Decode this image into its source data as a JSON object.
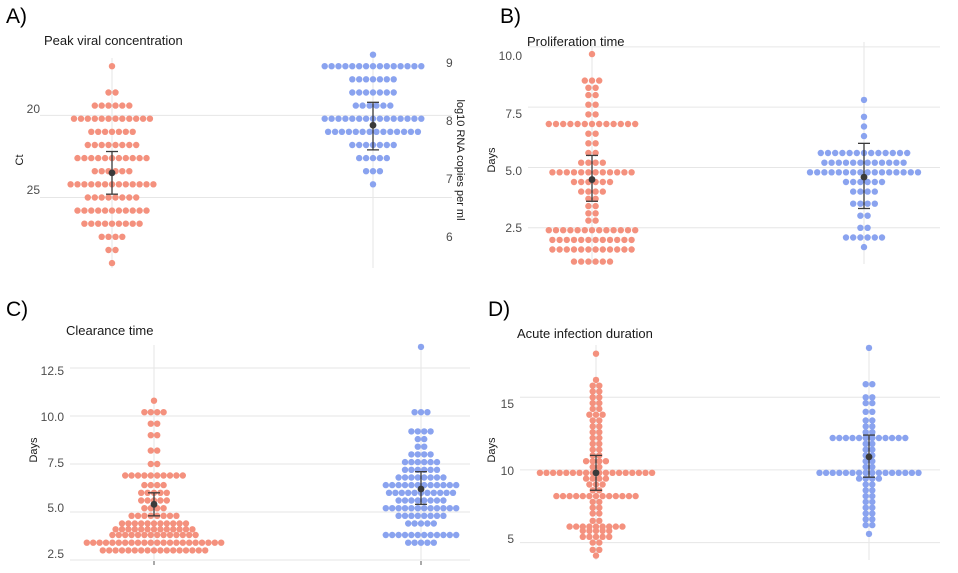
{
  "colors": {
    "group_a": "#f4917e",
    "group_b": "#8aa3ef",
    "error_bar": "#3a3a3a"
  },
  "chart_data": [
    {
      "panel": "A)",
      "type": "scatter",
      "title": "Peak viral concentration",
      "ylabel": "Ct",
      "y2label": "log10 RNA copies per ml",
      "ylim": [
        29.3,
        16.5
      ],
      "y_reversed": true,
      "yticks": [
        20,
        25
      ],
      "y2ticks": [
        6,
        7,
        8,
        9
      ],
      "y2_map": {
        "slope": -0.2768,
        "intercept": 13.54
      },
      "groups": [
        {
          "mean": 23.5,
          "err": [
            22.2,
            24.8
          ]
        },
        {
          "mean": 20.6,
          "err": [
            19.2,
            22.1
          ]
        }
      ],
      "series": [
        {
          "values": [
            17.0,
            18.6,
            18.6,
            19.4,
            19.4,
            19.4,
            19.4,
            19.4,
            19.4,
            20.2,
            20.2,
            20.2,
            20.2,
            20.2,
            20.2,
            20.2,
            20.2,
            20.2,
            20.2,
            20.2,
            20.2,
            21.0,
            21.0,
            21.0,
            21.0,
            21.0,
            21.0,
            21.0,
            21.8,
            21.8,
            21.8,
            21.8,
            21.8,
            21.8,
            21.8,
            21.8,
            22.6,
            22.6,
            22.6,
            22.6,
            22.6,
            22.6,
            22.6,
            22.6,
            22.6,
            22.6,
            22.6,
            23.4,
            23.4,
            23.4,
            23.4,
            23.4,
            23.4,
            24.2,
            24.2,
            24.2,
            24.2,
            24.2,
            24.2,
            24.2,
            24.2,
            24.2,
            24.2,
            24.2,
            24.2,
            24.2,
            25.0,
            25.0,
            25.0,
            25.0,
            25.0,
            25.0,
            25.0,
            25.0,
            25.8,
            25.8,
            25.8,
            25.8,
            25.8,
            25.8,
            25.8,
            25.8,
            25.8,
            25.8,
            25.8,
            26.6,
            26.6,
            26.6,
            26.6,
            26.6,
            26.6,
            26.6,
            26.6,
            26.6,
            27.4,
            27.4,
            27.4,
            27.4,
            28.2,
            28.2,
            29.0
          ]
        },
        {
          "values": [
            16.3,
            17.0,
            17.0,
            17.0,
            17.0,
            17.0,
            17.0,
            17.0,
            17.0,
            17.0,
            17.0,
            17.0,
            17.0,
            17.0,
            17.0,
            17.0,
            17.8,
            17.8,
            17.8,
            17.8,
            17.8,
            17.8,
            17.8,
            18.6,
            18.6,
            18.6,
            18.6,
            18.6,
            18.6,
            18.6,
            19.4,
            19.4,
            19.4,
            19.4,
            19.4,
            19.4,
            20.2,
            20.2,
            20.2,
            20.2,
            20.2,
            20.2,
            20.2,
            20.2,
            20.2,
            20.2,
            20.2,
            20.2,
            20.2,
            20.2,
            20.2,
            21.0,
            21.0,
            21.0,
            21.0,
            21.0,
            21.0,
            21.0,
            21.0,
            21.0,
            21.0,
            21.0,
            21.0,
            21.0,
            21.0,
            21.8,
            21.8,
            21.8,
            21.8,
            21.8,
            21.8,
            21.8,
            22.6,
            22.6,
            22.6,
            22.6,
            22.6,
            23.4,
            23.4,
            23.4,
            24.2
          ]
        }
      ]
    },
    {
      "panel": "B)",
      "type": "scatter",
      "title": "Proliferation time",
      "ylabel": "Days",
      "ylim": [
        1.0,
        10.2
      ],
      "yticks": [
        "2.5",
        "5.0",
        "7.5",
        "10.0"
      ],
      "groups": [
        {
          "mean": 4.5,
          "err": [
            3.6,
            5.5
          ]
        },
        {
          "mean": 4.6,
          "err": [
            3.3,
            6.0
          ]
        }
      ],
      "series": [
        {
          "values": [
            1.1,
            1.1,
            1.1,
            1.1,
            1.1,
            1.1,
            1.6,
            1.6,
            1.6,
            1.6,
            1.6,
            1.6,
            1.6,
            1.6,
            1.6,
            1.6,
            1.6,
            1.6,
            2.0,
            2.0,
            2.0,
            2.0,
            2.0,
            2.0,
            2.0,
            2.0,
            2.0,
            2.0,
            2.0,
            2.0,
            2.4,
            2.4,
            2.4,
            2.4,
            2.4,
            2.4,
            2.4,
            2.4,
            2.4,
            2.4,
            2.4,
            2.4,
            2.4,
            2.8,
            2.8,
            3.1,
            3.1,
            3.4,
            3.4,
            3.7,
            3.7,
            4.0,
            4.0,
            4.0,
            4.0,
            4.4,
            4.4,
            4.4,
            4.4,
            4.4,
            4.4,
            4.8,
            4.8,
            4.8,
            4.8,
            4.8,
            4.8,
            4.8,
            4.8,
            4.8,
            4.8,
            4.8,
            4.8,
            5.2,
            5.2,
            5.2,
            5.2,
            5.6,
            5.6,
            6.0,
            6.0,
            6.4,
            6.4,
            6.8,
            6.8,
            6.8,
            6.8,
            6.8,
            6.8,
            6.8,
            6.8,
            6.8,
            6.8,
            6.8,
            6.8,
            6.8,
            7.2,
            7.2,
            7.6,
            7.6,
            8.0,
            8.0,
            8.3,
            8.3,
            8.6,
            8.6,
            8.6,
            9.7
          ]
        },
        {
          "values": [
            1.7,
            2.1,
            2.1,
            2.1,
            2.1,
            2.1,
            2.1,
            2.5,
            2.5,
            3.0,
            3.0,
            3.5,
            3.5,
            3.5,
            3.5,
            4.0,
            4.0,
            4.0,
            4.0,
            4.4,
            4.4,
            4.4,
            4.4,
            4.4,
            4.4,
            4.8,
            4.8,
            4.8,
            4.8,
            4.8,
            4.8,
            4.8,
            4.8,
            4.8,
            4.8,
            4.8,
            4.8,
            4.8,
            4.8,
            4.8,
            4.8,
            5.2,
            5.2,
            5.2,
            5.2,
            5.2,
            5.2,
            5.2,
            5.2,
            5.2,
            5.2,
            5.2,
            5.2,
            5.6,
            5.6,
            5.6,
            5.6,
            5.6,
            5.6,
            5.6,
            5.6,
            5.6,
            5.6,
            5.6,
            5.6,
            5.6,
            6.3,
            6.7,
            7.1,
            7.8
          ]
        }
      ]
    },
    {
      "panel": "C)",
      "type": "scatter",
      "title": "Clearance time",
      "ylabel": "Days",
      "ylim": [
        2.5,
        13.7
      ],
      "yticks": [
        "2.5",
        "5.0",
        "7.5",
        "10.0",
        "12.5"
      ],
      "groups": [
        {
          "mean": 5.4,
          "err": [
            4.8,
            6.0
          ]
        },
        {
          "mean": 6.2,
          "err": [
            5.4,
            7.1
          ]
        }
      ],
      "series": [
        {
          "values": [
            3.0,
            3.0,
            3.0,
            3.0,
            3.0,
            3.0,
            3.0,
            3.0,
            3.0,
            3.0,
            3.0,
            3.0,
            3.0,
            3.0,
            3.0,
            3.0,
            3.0,
            3.4,
            3.4,
            3.4,
            3.4,
            3.4,
            3.4,
            3.4,
            3.4,
            3.4,
            3.4,
            3.4,
            3.4,
            3.4,
            3.4,
            3.4,
            3.4,
            3.4,
            3.4,
            3.4,
            3.4,
            3.4,
            3.4,
            3.8,
            3.8,
            3.8,
            3.8,
            3.8,
            3.8,
            3.8,
            3.8,
            3.8,
            3.8,
            3.8,
            3.8,
            3.8,
            3.8,
            4.1,
            4.1,
            4.1,
            4.1,
            4.1,
            4.1,
            4.1,
            4.1,
            4.1,
            4.1,
            4.1,
            4.1,
            4.1,
            4.4,
            4.4,
            4.4,
            4.4,
            4.4,
            4.4,
            4.4,
            4.4,
            4.4,
            4.4,
            4.4,
            4.8,
            4.8,
            4.8,
            4.8,
            4.8,
            4.8,
            4.8,
            4.8,
            5.2,
            5.2,
            5.2,
            5.2,
            5.6,
            5.6,
            5.6,
            5.6,
            5.6,
            6.0,
            6.0,
            6.0,
            6.0,
            6.0,
            6.4,
            6.4,
            6.4,
            6.4,
            6.9,
            6.9,
            6.9,
            6.9,
            6.9,
            6.9,
            6.9,
            6.9,
            6.9,
            6.9,
            7.5,
            7.5,
            8.2,
            8.2,
            9.0,
            9.0,
            9.6,
            9.6,
            10.2,
            10.2,
            10.2,
            10.2,
            10.8
          ]
        },
        {
          "values": [
            3.4,
            3.4,
            3.4,
            3.4,
            3.4,
            3.8,
            3.8,
            3.8,
            3.8,
            3.8,
            3.8,
            3.8,
            3.8,
            3.8,
            3.8,
            3.8,
            3.8,
            4.4,
            4.4,
            4.4,
            4.4,
            4.4,
            4.8,
            4.8,
            4.8,
            4.8,
            4.8,
            4.8,
            4.8,
            4.8,
            5.2,
            5.2,
            5.2,
            5.2,
            5.2,
            5.2,
            5.2,
            5.2,
            5.2,
            5.2,
            5.2,
            5.2,
            5.6,
            5.6,
            5.6,
            5.6,
            5.6,
            5.6,
            5.6,
            5.6,
            6.0,
            6.0,
            6.0,
            6.0,
            6.0,
            6.0,
            6.0,
            6.0,
            6.0,
            6.0,
            6.0,
            6.4,
            6.4,
            6.4,
            6.4,
            6.4,
            6.4,
            6.4,
            6.4,
            6.4,
            6.4,
            6.4,
            6.4,
            6.8,
            6.8,
            6.8,
            6.8,
            6.8,
            6.8,
            6.8,
            6.8,
            7.2,
            7.2,
            7.2,
            7.2,
            7.2,
            7.2,
            7.6,
            7.6,
            7.6,
            7.6,
            7.6,
            7.6,
            8.0,
            8.0,
            8.0,
            8.0,
            8.4,
            8.4,
            8.8,
            8.8,
            9.2,
            9.2,
            9.2,
            9.2,
            10.2,
            10.2,
            10.2,
            13.6
          ]
        }
      ]
    },
    {
      "panel": "D)",
      "type": "scatter",
      "title": "Acute infection duration",
      "ylabel": "Days",
      "ylim": [
        3.8,
        18.6
      ],
      "yticks": [
        5,
        10,
        15
      ],
      "groups": [
        {
          "mean": 9.8,
          "err": [
            8.6,
            11.0
          ]
        },
        {
          "mean": 10.9,
          "err": [
            9.5,
            12.4
          ]
        }
      ],
      "series": [
        {
          "values": [
            4.1,
            4.5,
            4.5,
            5.0,
            5.0,
            5.4,
            5.4,
            5.4,
            5.4,
            5.4,
            5.8,
            5.8,
            5.8,
            5.8,
            5.8,
            6.1,
            6.1,
            6.1,
            6.1,
            6.1,
            6.1,
            6.1,
            6.1,
            6.1,
            6.5,
            6.5,
            7.0,
            7.0,
            7.4,
            7.4,
            7.8,
            7.8,
            8.2,
            8.2,
            8.2,
            8.2,
            8.2,
            8.2,
            8.2,
            8.2,
            8.2,
            8.2,
            8.2,
            8.2,
            8.2,
            8.6,
            8.6,
            9.0,
            9.0,
            9.0,
            9.4,
            9.4,
            9.4,
            9.4,
            9.8,
            9.8,
            9.8,
            9.8,
            9.8,
            9.8,
            9.8,
            9.8,
            9.8,
            9.8,
            9.8,
            9.8,
            9.8,
            9.8,
            9.8,
            9.8,
            9.8,
            9.8,
            10.2,
            10.2,
            10.6,
            10.6,
            10.6,
            10.6,
            11.0,
            11.0,
            11.4,
            11.4,
            11.8,
            11.8,
            12.2,
            12.2,
            12.6,
            12.6,
            13.0,
            13.0,
            13.4,
            13.4,
            13.8,
            13.8,
            13.8,
            14.2,
            14.2,
            14.6,
            14.6,
            15.0,
            15.0,
            15.4,
            15.4,
            15.8,
            15.8,
            16.2,
            18.0
          ]
        },
        {
          "values": [
            5.6,
            6.2,
            6.2,
            6.6,
            6.6,
            7.0,
            7.0,
            7.4,
            7.4,
            7.8,
            7.8,
            8.2,
            8.2,
            8.6,
            8.6,
            9.0,
            9.0,
            9.4,
            9.4,
            9.4,
            9.4,
            9.8,
            9.8,
            9.8,
            9.8,
            9.8,
            9.8,
            9.8,
            9.8,
            9.8,
            9.8,
            9.8,
            9.8,
            9.8,
            9.8,
            9.8,
            9.8,
            10.2,
            10.2,
            10.6,
            10.6,
            11.0,
            11.0,
            11.4,
            11.4,
            11.8,
            11.8,
            12.2,
            12.2,
            12.2,
            12.2,
            12.2,
            12.2,
            12.2,
            12.2,
            12.2,
            12.2,
            12.2,
            12.2,
            12.6,
            12.6,
            13.0,
            13.0,
            13.4,
            13.4,
            14.0,
            14.0,
            14.6,
            14.6,
            15.0,
            15.0,
            15.9,
            15.9,
            18.4
          ]
        }
      ]
    }
  ]
}
